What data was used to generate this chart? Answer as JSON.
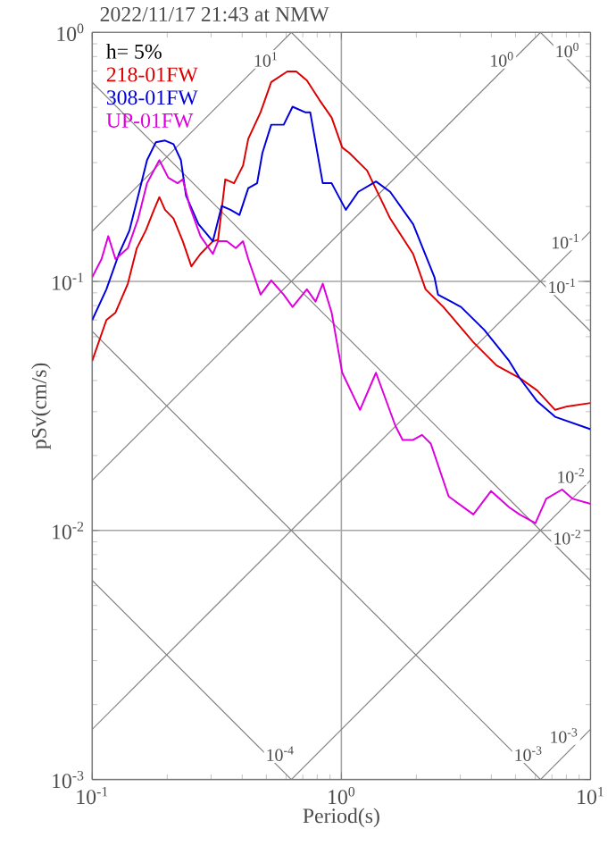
{
  "chart_data": {
    "type": "line",
    "title": "2022/11/17 21:43 at NMW",
    "xlabel": "Period(s)",
    "ylabel": "pSv(cm/s)",
    "log": "xy",
    "grid": true,
    "legend": "top left",
    "marker": "none",
    "xlim": [
      0.1,
      10
    ],
    "ylim": [
      0.001,
      1
    ],
    "xticks": [
      {
        "value": 0.1,
        "label": "10$^{-1}$"
      },
      {
        "value": 1,
        "label": "10$^{0}$"
      },
      {
        "value": 10,
        "label": "10$^{1}$"
      }
    ],
    "yticks": [
      {
        "value": 0.001,
        "label": "10$^{-3}$"
      },
      {
        "value": 0.01,
        "label": "10$^{-2}$"
      },
      {
        "value": 0.1,
        "label": "10$^{-1}$"
      },
      {
        "value": 1,
        "label": "10$^{0}$"
      }
    ],
    "series": [
      {
        "color": "#808080",
        "x": [
          0.1,
          0.63
        ],
        "values": [
          0.159,
          1
        ]
      },
      {
        "color": "#808080",
        "x": [
          0.1,
          6.3
        ],
        "values": [
          0.0159,
          1
        ]
      },
      {
        "color": "#808080",
        "x": [
          0.1,
          10
        ],
        "values": [
          0.00159,
          0.159
        ]
      },
      {
        "color": "#808080",
        "x": [
          0.63,
          10
        ],
        "values": [
          0.001,
          0.0159
        ]
      },
      {
        "color": "#808080",
        "x": [
          6.3,
          10
        ],
        "values": [
          0.001,
          0.00159
        ]
      },
      {
        "color": "#808080",
        "x": [
          6.3,
          10
        ],
        "values": [
          1,
          0.63
        ]
      },
      {
        "color": "#808080",
        "x": [
          0.63,
          10
        ],
        "values": [
          1,
          0.063
        ]
      },
      {
        "color": "#808080",
        "x": [
          0.1,
          10
        ],
        "values": [
          0.63,
          0.0063
        ]
      },
      {
        "color": "#808080",
        "x": [
          0.1,
          6.3
        ],
        "values": [
          0.063,
          0.001
        ]
      },
      {
        "color": "#808080",
        "x": [
          0.1,
          0.63
        ],
        "values": [
          0.0063,
          0.001
        ]
      },
      {
        "name": "218-01FW",
        "color": "#dd0000",
        "x": [
          0.1,
          0.114,
          0.124,
          0.139,
          0.151,
          0.164,
          0.177,
          0.186,
          0.196,
          0.212,
          0.231,
          0.25,
          0.272,
          0.305,
          0.32,
          0.342,
          0.371,
          0.403,
          0.423,
          0.474,
          0.523,
          0.607,
          0.659,
          0.727,
          0.815,
          0.914,
          1.008,
          1.077,
          1.268,
          1.57,
          1.941,
          2.178,
          2.566,
          3.388,
          4.198,
          5.19,
          6.11,
          7.21,
          8.07,
          10
        ],
        "values": [
          0.048,
          0.07,
          0.075,
          0.098,
          0.136,
          0.16,
          0.194,
          0.218,
          0.194,
          0.179,
          0.145,
          0.115,
          0.129,
          0.145,
          0.147,
          0.257,
          0.248,
          0.292,
          0.374,
          0.478,
          0.632,
          0.697,
          0.697,
          0.642,
          0.537,
          0.455,
          0.345,
          0.328,
          0.279,
          0.179,
          0.129,
          0.093,
          0.079,
          0.057,
          0.046,
          0.041,
          0.0365,
          0.0305,
          0.0315,
          0.0325
        ]
      },
      {
        "name": "308-01FW",
        "color": "#0000dd",
        "x": [
          0.1,
          0.114,
          0.128,
          0.141,
          0.153,
          0.166,
          0.18,
          0.196,
          0.212,
          0.227,
          0.238,
          0.267,
          0.305,
          0.331,
          0.359,
          0.39,
          0.423,
          0.459,
          0.482,
          0.523,
          0.587,
          0.637,
          0.715,
          0.75,
          0.842,
          0.914,
          1.042,
          1.169,
          1.377,
          1.57,
          1.941,
          2.364,
          2.443,
          3.021,
          3.741,
          4.71,
          5.19,
          6.11,
          7.21,
          10
        ],
        "values": [
          0.07,
          0.093,
          0.129,
          0.16,
          0.221,
          0.307,
          0.362,
          0.368,
          0.356,
          0.307,
          0.221,
          0.17,
          0.145,
          0.201,
          0.194,
          0.185,
          0.237,
          0.248,
          0.328,
          0.426,
          0.426,
          0.503,
          0.478,
          0.478,
          0.248,
          0.248,
          0.194,
          0.229,
          0.252,
          0.229,
          0.17,
          0.104,
          0.0885,
          0.079,
          0.064,
          0.048,
          0.041,
          0.033,
          0.0286,
          0.0255
        ]
      },
      {
        "name": "UP-01FW",
        "color": "#dd00dd",
        "x": [
          0.1,
          0.109,
          0.116,
          0.124,
          0.139,
          0.153,
          0.166,
          0.186,
          0.202,
          0.22,
          0.231,
          0.246,
          0.272,
          0.305,
          0.32,
          0.347,
          0.377,
          0.403,
          0.423,
          0.474,
          0.523,
          0.587,
          0.637,
          0.727,
          0.788,
          0.842,
          0.914,
          1.008,
          1.188,
          1.377,
          1.648,
          1.761,
          1.941,
          2.108,
          2.286,
          2.696,
          3.388,
          3.99,
          4.71,
          5.19,
          6.01,
          6.64,
          7.69,
          8.49,
          10
        ],
        "values": [
          0.104,
          0.123,
          0.152,
          0.123,
          0.136,
          0.179,
          0.248,
          0.307,
          0.261,
          0.248,
          0.257,
          0.201,
          0.152,
          0.129,
          0.145,
          0.145,
          0.136,
          0.145,
          0.123,
          0.0885,
          0.101,
          0.0885,
          0.079,
          0.093,
          0.083,
          0.098,
          0.075,
          0.043,
          0.0305,
          0.043,
          0.0263,
          0.0231,
          0.0231,
          0.0242,
          0.0223,
          0.0137,
          0.0116,
          0.0144,
          0.0124,
          0.0116,
          0.0107,
          0.0134,
          0.0146,
          0.0134,
          0.0128
        ]
      }
    ],
    "annotations": [
      "h= 5%",
      {
        "text": "10$^{1}$",
        "x": 0.498,
        "y": 0.78
      },
      {
        "text": "10$^{0}$",
        "x": 4.41,
        "y": 0.78
      },
      {
        "text": "10$^{-1}$",
        "x": 7.94,
        "y": 0.145
      },
      {
        "text": "10$^{-2}$",
        "x": 8.35,
        "y": 0.0166
      },
      {
        "text": "10$^{-3}$",
        "x": 7.82,
        "y": 0.0015
      },
      {
        "text": "10$^{0}$",
        "x": 8.08,
        "y": 0.85
      },
      {
        "text": "10$^{-1}$",
        "x": 7.69,
        "y": 0.096
      },
      {
        "text": "10$^{-2}$",
        "x": 8.08,
        "y": 0.0094
      },
      {
        "text": "10$^{-3}$",
        "x": 5.63,
        "y": 0.00127
      },
      {
        "text": "10$^{-4}$",
        "x": 0.568,
        "y": 0.00127
      }
    ]
  }
}
